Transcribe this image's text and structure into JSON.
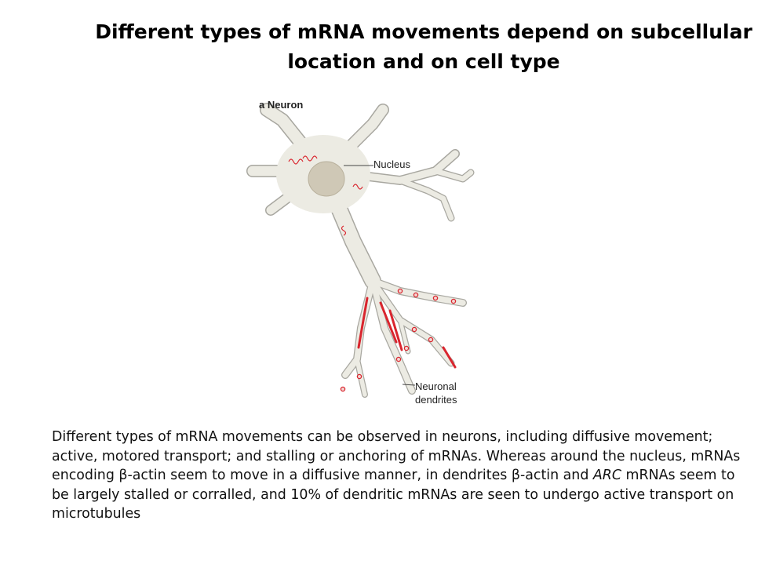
{
  "slide": {
    "title_line1": "Different types of mRNA movements depend on subcellular",
    "title_line2": "location and on cell type"
  },
  "figure": {
    "panel_label": "a Neuron",
    "nucleus_label": "Nucleus",
    "dendrites_label_line1": "Neuronal",
    "dendrites_label_line2": "dendrites",
    "colors": {
      "cell_body": "#ecebe3",
      "cell_outline": "#a8a7a0",
      "nucleus": "#cfc8b6",
      "mrna": "#d9252e"
    }
  },
  "caption": {
    "part1": "Different types of mRNA movements can be observed in neurons, including diffusive movement; active, motored transport; and stalling or anchoring of mRNAs. Whereas around the nucleus, mRNAs encoding β-actin seem to move in a diffusive manner, in dendrites β-actin and ",
    "italic": "ARC",
    "part2": " mRNAs seem to be largely stalled or corralled, and 10% of dendritic mRNAs are seen to undergo active transport on microtubules"
  }
}
